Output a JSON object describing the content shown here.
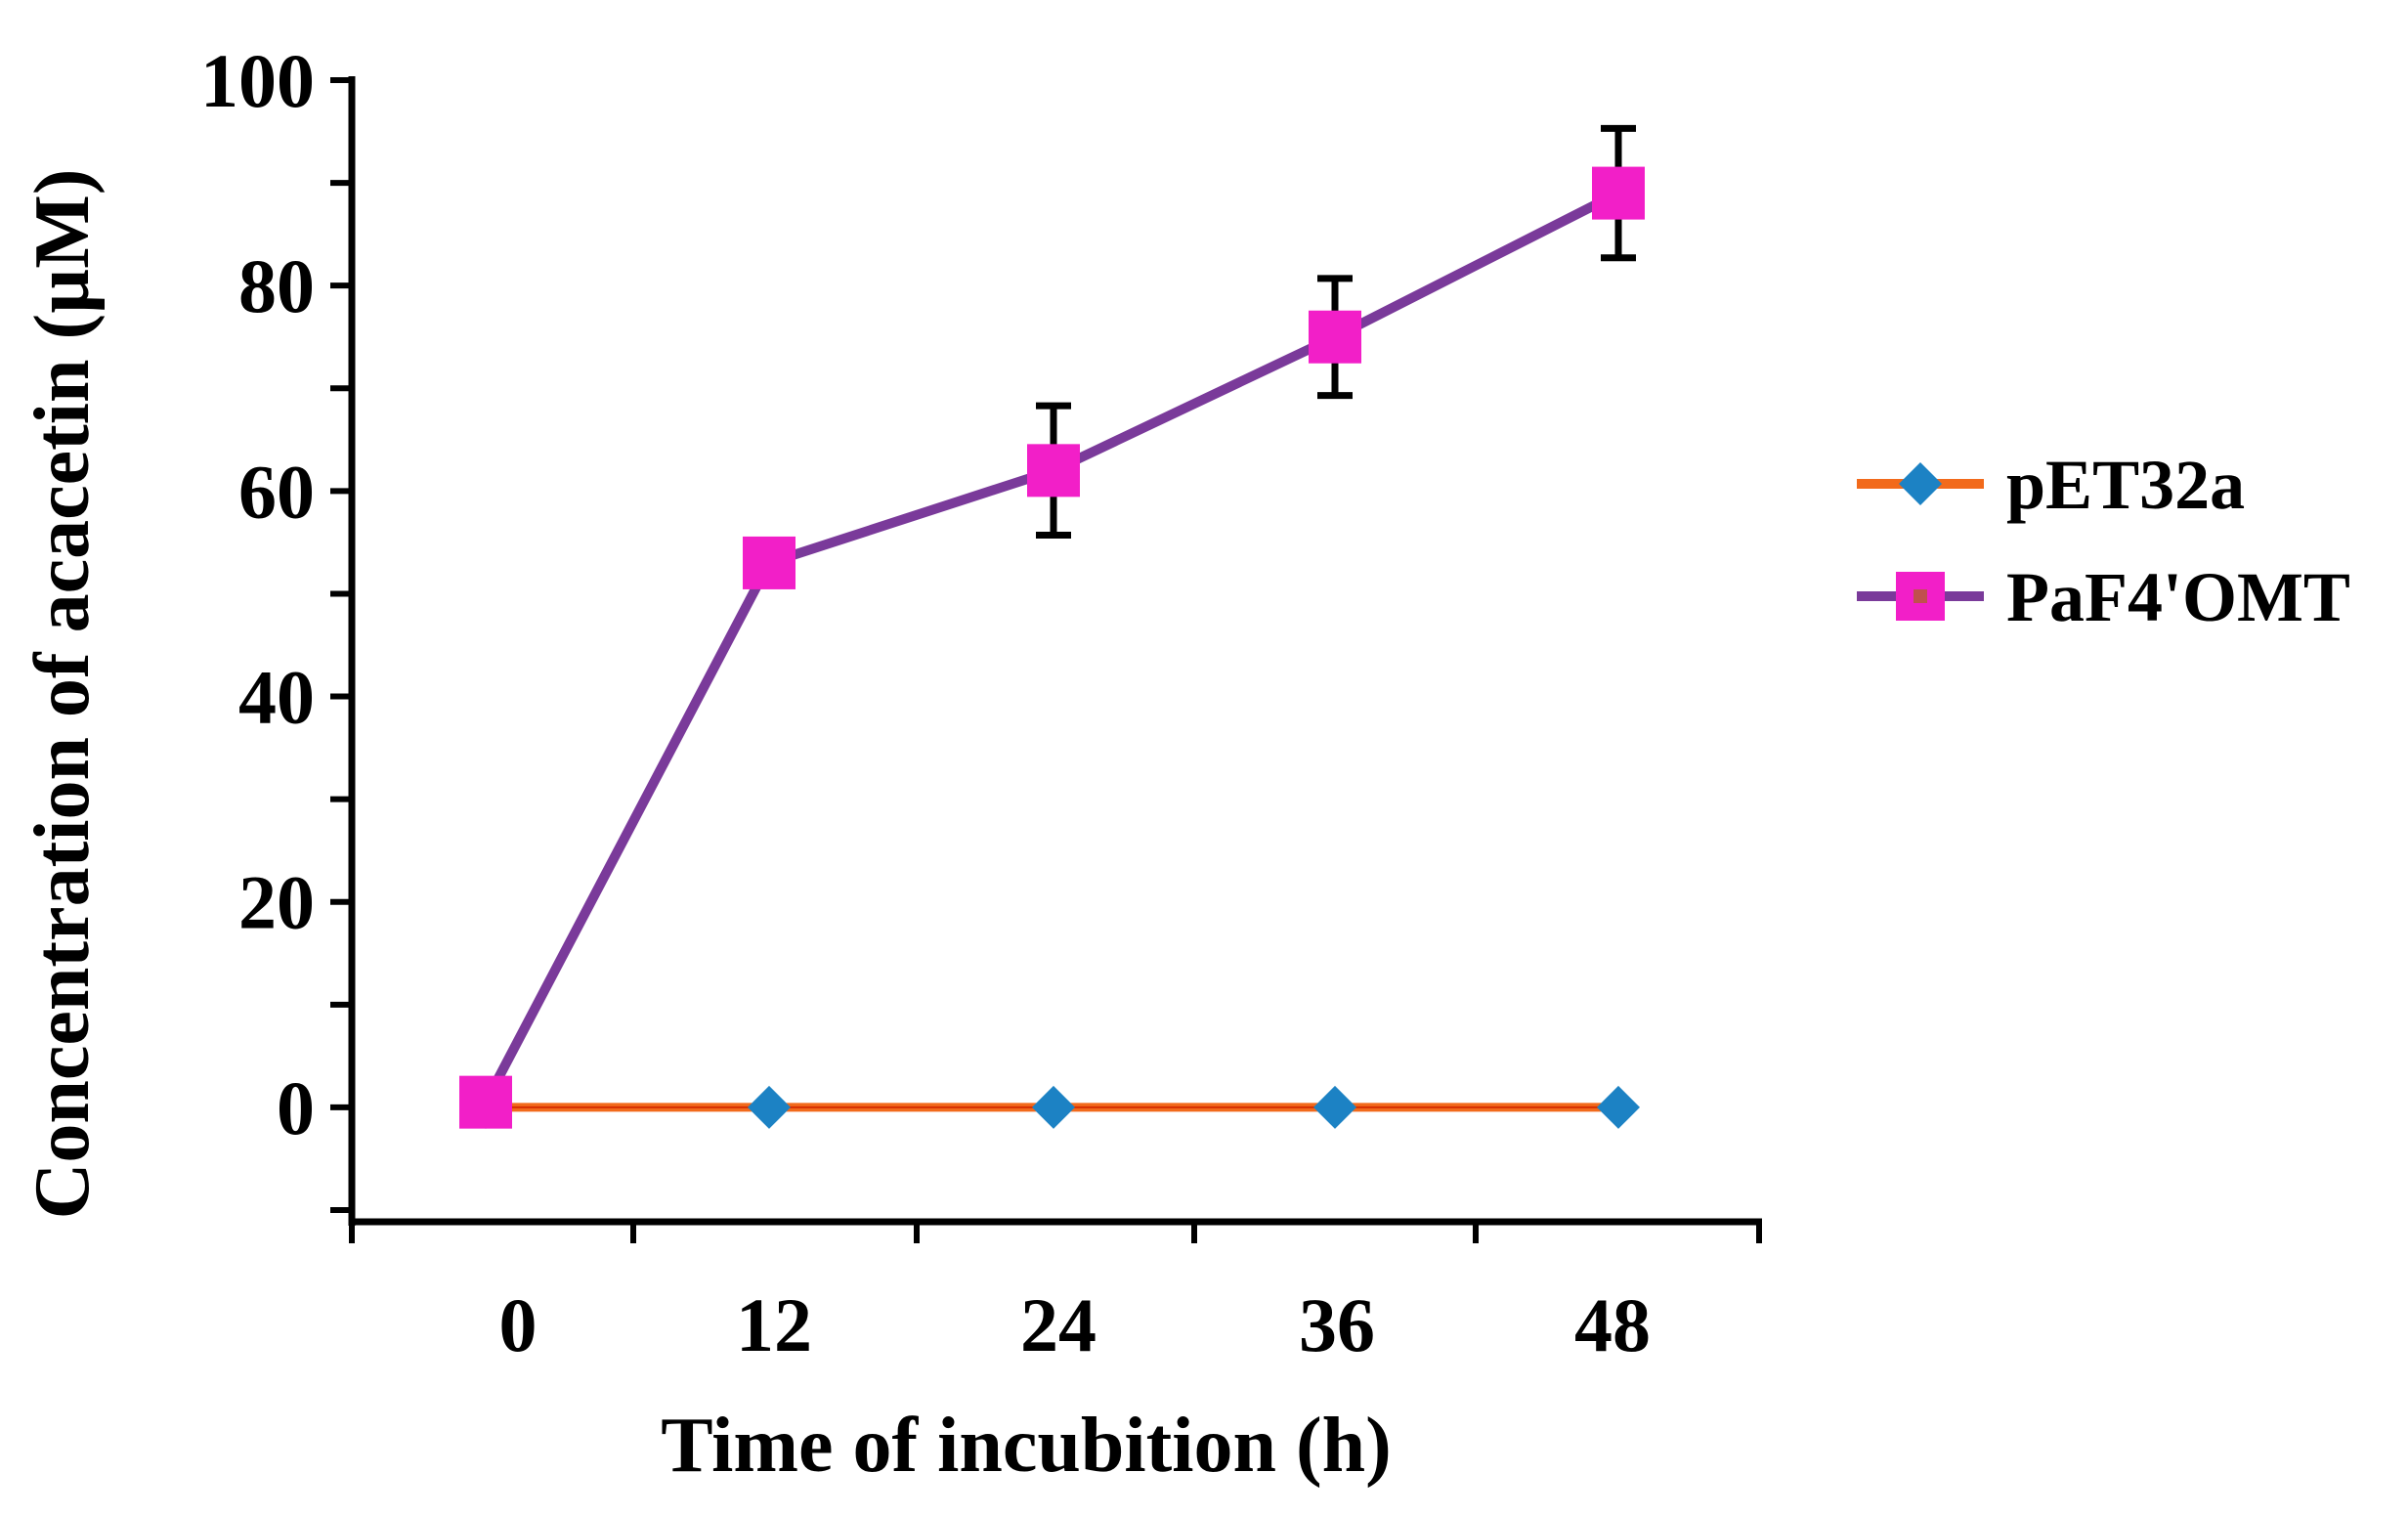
{
  "chart_data": {
    "type": "line",
    "title": "",
    "xlabel": "Time of incubition (h)",
    "ylabel": "Concentration of acacetin (µM)",
    "categories": [
      "0",
      "12",
      "24",
      "36",
      "48"
    ],
    "ylim": [
      -10,
      100
    ],
    "yticks": [
      "0",
      "20",
      "40",
      "60",
      "80",
      "100"
    ],
    "legend_position": "right",
    "series": [
      {
        "name": "pET32a",
        "values": [
          0,
          0,
          0,
          0,
          0
        ],
        "errors": [
          0,
          0,
          0,
          0,
          0
        ],
        "line_color": "#F26A1B",
        "marker": "diamond",
        "marker_color": "#1C82C4"
      },
      {
        "name": "PaF4'OMT",
        "values": [
          0.5,
          53,
          62,
          75,
          89
        ],
        "errors": [
          0,
          0,
          6.3,
          5.7,
          6.3
        ],
        "line_color": "#7A3A9A",
        "marker": "square",
        "marker_color": "#F21FC8"
      }
    ]
  }
}
